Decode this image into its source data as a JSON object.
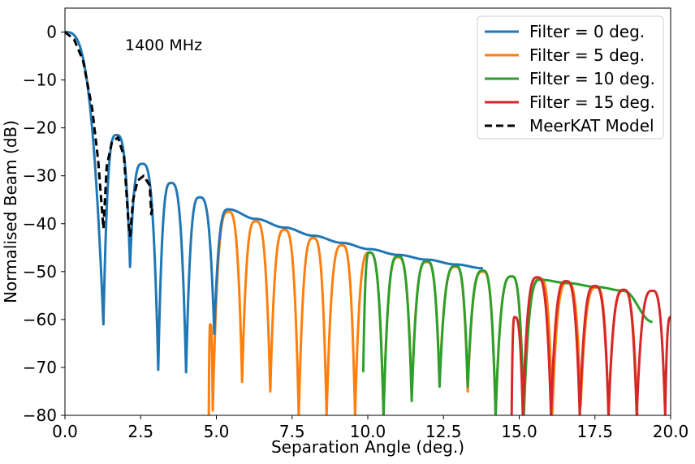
{
  "chart_data": {
    "type": "line",
    "annotation": "1400 MHz",
    "xlabel": "Separation Angle (deg.)",
    "ylabel": "Normalised Beam (dB)",
    "xlim": [
      0,
      20
    ],
    "ylim": [
      -80,
      5
    ],
    "xticks": [
      0,
      2.5,
      5,
      7.5,
      10,
      12.5,
      15,
      17.5,
      20
    ],
    "xtick_labels": [
      "0.0",
      "2.5",
      "5.0",
      "7.5",
      "10.0",
      "12.5",
      "15.0",
      "17.5",
      "20.0"
    ],
    "yticks": [
      0,
      -10,
      -20,
      -30,
      -40,
      -50,
      -60,
      -70,
      -80
    ],
    "ytick_labels": [
      "0",
      "−10",
      "−20",
      "−30",
      "−40",
      "−50",
      "−60",
      "−70",
      "−80"
    ],
    "grid": false,
    "legend_position": "top-right",
    "series": [
      {
        "name": "Filter = 0 deg.",
        "color": "#1f77b4",
        "style": "solid",
        "peaks": [
          {
            "x": 0.0,
            "y": 0
          },
          {
            "x": 1.7,
            "y": -21.5
          },
          {
            "x": 2.55,
            "y": -27.5
          },
          {
            "x": 3.5,
            "y": -31.5
          },
          {
            "x": 4.45,
            "y": -34.5
          },
          {
            "x": 5.4,
            "y": -37.0
          },
          {
            "x": 6.3,
            "y": -39.0
          },
          {
            "x": 7.25,
            "y": -40.8
          },
          {
            "x": 8.2,
            "y": -42.5
          },
          {
            "x": 9.15,
            "y": -44.0
          },
          {
            "x": 10.05,
            "y": -45.3
          },
          {
            "x": 11.0,
            "y": -46.5
          },
          {
            "x": 11.95,
            "y": -47.5
          },
          {
            "x": 12.9,
            "y": -48.5
          },
          {
            "x": 13.8,
            "y": -49.3
          }
        ],
        "nulls": [
          {
            "x": 1.27,
            "y": -61
          },
          {
            "x": 2.15,
            "y": -49
          },
          {
            "x": 3.08,
            "y": -70.5
          },
          {
            "x": 4.0,
            "y": -71
          },
          {
            "x": 4.93,
            "y": -63
          }
        ]
      },
      {
        "name": "Filter = 5 deg.",
        "color": "#ff7f0e",
        "style": "solid",
        "peaks": [
          {
            "x": 4.8,
            "y": -61
          },
          {
            "x": 5.4,
            "y": -37.5
          },
          {
            "x": 6.3,
            "y": -39.5
          },
          {
            "x": 7.25,
            "y": -41.3
          },
          {
            "x": 8.2,
            "y": -43.0
          },
          {
            "x": 9.15,
            "y": -44.5
          },
          {
            "x": 10.05,
            "y": -46.0
          },
          {
            "x": 11.0,
            "y": -47.0
          },
          {
            "x": 11.95,
            "y": -48.0
          },
          {
            "x": 12.9,
            "y": -49.0
          },
          {
            "x": 13.8,
            "y": -50.0
          },
          {
            "x": 14.75,
            "y": -51.0
          },
          {
            "x": 15.7,
            "y": -51.5
          },
          {
            "x": 16.6,
            "y": -52.3
          },
          {
            "x": 17.55,
            "y": -53.3
          },
          {
            "x": 18.45,
            "y": -54.0
          }
        ],
        "nulls": [
          {
            "x": 4.75,
            "y": -80
          },
          {
            "x": 4.88,
            "y": -79
          },
          {
            "x": 5.85,
            "y": -73
          },
          {
            "x": 6.78,
            "y": -75
          },
          {
            "x": 7.72,
            "y": -80
          },
          {
            "x": 8.64,
            "y": -80
          },
          {
            "x": 9.58,
            "y": -80
          },
          {
            "x": 10.52,
            "y": -80
          },
          {
            "x": 11.45,
            "y": -76
          },
          {
            "x": 12.37,
            "y": -73
          },
          {
            "x": 13.3,
            "y": -75
          },
          {
            "x": 14.22,
            "y": -80
          },
          {
            "x": 15.15,
            "y": -80
          },
          {
            "x": 16.09,
            "y": -80
          },
          {
            "x": 17.03,
            "y": -78
          },
          {
            "x": 17.95,
            "y": -80
          },
          {
            "x": 18.9,
            "y": -80
          }
        ]
      },
      {
        "name": "Filter = 10 deg.",
        "color": "#2ca02c",
        "style": "solid",
        "peaks": [
          {
            "x": 10.05,
            "y": -46.0
          },
          {
            "x": 11.0,
            "y": -46.8
          },
          {
            "x": 11.95,
            "y": -47.8
          },
          {
            "x": 12.9,
            "y": -48.8
          },
          {
            "x": 13.8,
            "y": -49.8
          },
          {
            "x": 14.75,
            "y": -51.0
          },
          {
            "x": 15.7,
            "y": -51.7
          },
          {
            "x": 16.6,
            "y": -52.4
          },
          {
            "x": 17.55,
            "y": -53.2
          },
          {
            "x": 18.45,
            "y": -54.0
          },
          {
            "x": 19.4,
            "y": -60.5
          }
        ],
        "nulls": [
          {
            "x": 9.85,
            "y": -71
          },
          {
            "x": 10.52,
            "y": -80
          },
          {
            "x": 11.45,
            "y": -77
          },
          {
            "x": 12.37,
            "y": -74
          },
          {
            "x": 13.3,
            "y": -74
          },
          {
            "x": 14.22,
            "y": -80
          },
          {
            "x": 15.15,
            "y": -80
          }
        ]
      },
      {
        "name": "Filter = 15 deg.",
        "color": "#d62728",
        "style": "solid",
        "peaks": [
          {
            "x": 14.85,
            "y": -59.5
          },
          {
            "x": 15.6,
            "y": -51.2
          },
          {
            "x": 16.55,
            "y": -52.0
          },
          {
            "x": 17.5,
            "y": -53.0
          },
          {
            "x": 18.45,
            "y": -53.8
          },
          {
            "x": 19.4,
            "y": -54.0
          },
          {
            "x": 20.0,
            "y": -59.5
          }
        ],
        "nulls": [
          {
            "x": 14.75,
            "y": -80
          },
          {
            "x": 15.12,
            "y": -80
          },
          {
            "x": 16.05,
            "y": -80
          },
          {
            "x": 17.0,
            "y": -80
          },
          {
            "x": 17.95,
            "y": -80
          },
          {
            "x": 18.88,
            "y": -80
          },
          {
            "x": 19.82,
            "y": -80
          }
        ]
      },
      {
        "name": "MeerKAT Model",
        "color": "#000000",
        "style": "dashed",
        "points": [
          {
            "x": 0.0,
            "y": 0
          },
          {
            "x": 0.3,
            "y": -1.5
          },
          {
            "x": 0.6,
            "y": -6
          },
          {
            "x": 0.9,
            "y": -16
          },
          {
            "x": 1.1,
            "y": -27
          },
          {
            "x": 1.27,
            "y": -41
          },
          {
            "x": 1.38,
            "y": -28
          },
          {
            "x": 1.55,
            "y": -23
          },
          {
            "x": 1.75,
            "y": -22
          },
          {
            "x": 1.95,
            "y": -26
          },
          {
            "x": 2.1,
            "y": -40
          },
          {
            "x": 2.15,
            "y": -42.5
          },
          {
            "x": 2.25,
            "y": -35
          },
          {
            "x": 2.4,
            "y": -31
          },
          {
            "x": 2.6,
            "y": -30
          },
          {
            "x": 2.8,
            "y": -32
          },
          {
            "x": 2.85,
            "y": -38
          },
          {
            "x": 2.9,
            "y": -36
          }
        ]
      }
    ]
  }
}
